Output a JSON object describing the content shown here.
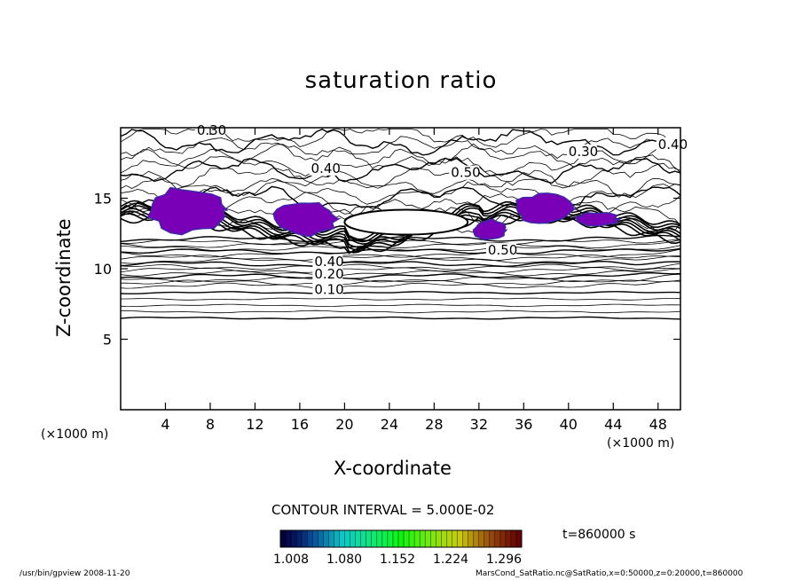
{
  "chart_data": {
    "type": "heatmap",
    "title": "saturation ratio",
    "xlabel": "X-coordinate",
    "ylabel": "Z-coordinate",
    "x_unit": "(×1000 m)",
    "xlim": [
      0,
      50
    ],
    "ylim": [
      0,
      20
    ],
    "x_ticks": [
      4,
      8,
      12,
      16,
      20,
      24,
      28,
      32,
      36,
      40,
      44,
      48
    ],
    "y_ticks": [
      5,
      10,
      15
    ],
    "contour_interval_label": "CONTOUR INTERVAL = 5.000E-02",
    "contour_labels": [
      {
        "text": "0.30",
        "x": 6.8,
        "z": 19.5
      },
      {
        "text": "0.40",
        "x": 17.0,
        "z": 16.8
      },
      {
        "text": "0.50",
        "x": 29.5,
        "z": 16.5
      },
      {
        "text": "0.30",
        "x": 40.0,
        "z": 18.0
      },
      {
        "text": "0.40",
        "x": 48.0,
        "z": 18.5
      },
      {
        "text": "0.50",
        "x": 32.8,
        "z": 11.0
      },
      {
        "text": "0.40",
        "x": 17.3,
        "z": 10.2
      },
      {
        "text": "0.20",
        "x": 17.3,
        "z": 9.3
      },
      {
        "text": "0.10",
        "x": 17.3,
        "z": 8.2
      }
    ],
    "colorbar": {
      "tick_labels": [
        "1.008",
        "1.080",
        "1.152",
        "1.224",
        "1.296"
      ],
      "range": [
        1.008,
        1.296
      ]
    },
    "supersaturated_regions": [
      {
        "x_range": [
          2.5,
          9.5
        ],
        "z_range": [
          12.5,
          15.8
        ]
      },
      {
        "x_range": [
          13.5,
          19.5
        ],
        "z_range": [
          12.3,
          14.8
        ]
      },
      {
        "x_range": [
          31.5,
          34.5
        ],
        "z_range": [
          12.0,
          13.5
        ]
      },
      {
        "x_range": [
          35.0,
          40.5
        ],
        "z_range": [
          13.2,
          15.3
        ]
      },
      {
        "x_range": [
          40.5,
          44.5
        ],
        "z_range": [
          13.0,
          14.0
        ]
      }
    ],
    "colors": {
      "frame": "#000000",
      "supersaturated_fill": "#7a00b8",
      "supersaturated_edge": "#3a2aa8"
    }
  },
  "annotations": {
    "time": "t=860000 s",
    "footer_left": "/usr/bin/gpview   2008-11-20",
    "footer_right": "MarsCond_SatRatio.nc@SatRatio,x=0:50000,z=0:20000,t=860000"
  }
}
